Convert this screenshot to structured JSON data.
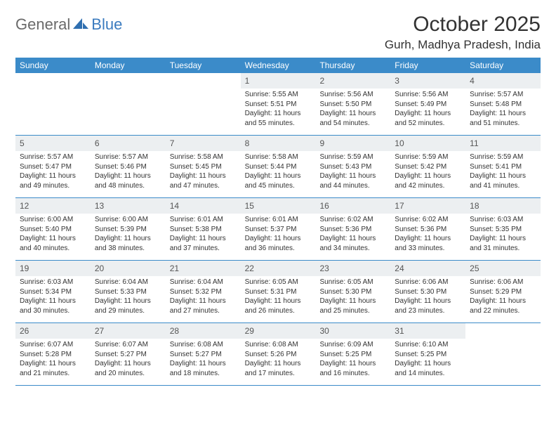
{
  "logo": {
    "part1": "General",
    "part2": "Blue"
  },
  "title": "October 2025",
  "location": "Gurh, Madhya Pradesh, India",
  "colors": {
    "header_bg": "#3b8bc9",
    "daynum_bg": "#eceff1",
    "rule": "#3b8bc9",
    "logo_gray": "#6a6a6a",
    "logo_blue": "#3b7bbf"
  },
  "weekdays": [
    "Sunday",
    "Monday",
    "Tuesday",
    "Wednesday",
    "Thursday",
    "Friday",
    "Saturday"
  ],
  "weeks": [
    [
      {
        "n": "",
        "sr": "",
        "ss": "",
        "dl1": "",
        "dl2": ""
      },
      {
        "n": "",
        "sr": "",
        "ss": "",
        "dl1": "",
        "dl2": ""
      },
      {
        "n": "",
        "sr": "",
        "ss": "",
        "dl1": "",
        "dl2": ""
      },
      {
        "n": "1",
        "sr": "Sunrise: 5:55 AM",
        "ss": "Sunset: 5:51 PM",
        "dl1": "Daylight: 11 hours",
        "dl2": "and 55 minutes."
      },
      {
        "n": "2",
        "sr": "Sunrise: 5:56 AM",
        "ss": "Sunset: 5:50 PM",
        "dl1": "Daylight: 11 hours",
        "dl2": "and 54 minutes."
      },
      {
        "n": "3",
        "sr": "Sunrise: 5:56 AM",
        "ss": "Sunset: 5:49 PM",
        "dl1": "Daylight: 11 hours",
        "dl2": "and 52 minutes."
      },
      {
        "n": "4",
        "sr": "Sunrise: 5:57 AM",
        "ss": "Sunset: 5:48 PM",
        "dl1": "Daylight: 11 hours",
        "dl2": "and 51 minutes."
      }
    ],
    [
      {
        "n": "5",
        "sr": "Sunrise: 5:57 AM",
        "ss": "Sunset: 5:47 PM",
        "dl1": "Daylight: 11 hours",
        "dl2": "and 49 minutes."
      },
      {
        "n": "6",
        "sr": "Sunrise: 5:57 AM",
        "ss": "Sunset: 5:46 PM",
        "dl1": "Daylight: 11 hours",
        "dl2": "and 48 minutes."
      },
      {
        "n": "7",
        "sr": "Sunrise: 5:58 AM",
        "ss": "Sunset: 5:45 PM",
        "dl1": "Daylight: 11 hours",
        "dl2": "and 47 minutes."
      },
      {
        "n": "8",
        "sr": "Sunrise: 5:58 AM",
        "ss": "Sunset: 5:44 PM",
        "dl1": "Daylight: 11 hours",
        "dl2": "and 45 minutes."
      },
      {
        "n": "9",
        "sr": "Sunrise: 5:59 AM",
        "ss": "Sunset: 5:43 PM",
        "dl1": "Daylight: 11 hours",
        "dl2": "and 44 minutes."
      },
      {
        "n": "10",
        "sr": "Sunrise: 5:59 AM",
        "ss": "Sunset: 5:42 PM",
        "dl1": "Daylight: 11 hours",
        "dl2": "and 42 minutes."
      },
      {
        "n": "11",
        "sr": "Sunrise: 5:59 AM",
        "ss": "Sunset: 5:41 PM",
        "dl1": "Daylight: 11 hours",
        "dl2": "and 41 minutes."
      }
    ],
    [
      {
        "n": "12",
        "sr": "Sunrise: 6:00 AM",
        "ss": "Sunset: 5:40 PM",
        "dl1": "Daylight: 11 hours",
        "dl2": "and 40 minutes."
      },
      {
        "n": "13",
        "sr": "Sunrise: 6:00 AM",
        "ss": "Sunset: 5:39 PM",
        "dl1": "Daylight: 11 hours",
        "dl2": "and 38 minutes."
      },
      {
        "n": "14",
        "sr": "Sunrise: 6:01 AM",
        "ss": "Sunset: 5:38 PM",
        "dl1": "Daylight: 11 hours",
        "dl2": "and 37 minutes."
      },
      {
        "n": "15",
        "sr": "Sunrise: 6:01 AM",
        "ss": "Sunset: 5:37 PM",
        "dl1": "Daylight: 11 hours",
        "dl2": "and 36 minutes."
      },
      {
        "n": "16",
        "sr": "Sunrise: 6:02 AM",
        "ss": "Sunset: 5:36 PM",
        "dl1": "Daylight: 11 hours",
        "dl2": "and 34 minutes."
      },
      {
        "n": "17",
        "sr": "Sunrise: 6:02 AM",
        "ss": "Sunset: 5:36 PM",
        "dl1": "Daylight: 11 hours",
        "dl2": "and 33 minutes."
      },
      {
        "n": "18",
        "sr": "Sunrise: 6:03 AM",
        "ss": "Sunset: 5:35 PM",
        "dl1": "Daylight: 11 hours",
        "dl2": "and 31 minutes."
      }
    ],
    [
      {
        "n": "19",
        "sr": "Sunrise: 6:03 AM",
        "ss": "Sunset: 5:34 PM",
        "dl1": "Daylight: 11 hours",
        "dl2": "and 30 minutes."
      },
      {
        "n": "20",
        "sr": "Sunrise: 6:04 AM",
        "ss": "Sunset: 5:33 PM",
        "dl1": "Daylight: 11 hours",
        "dl2": "and 29 minutes."
      },
      {
        "n": "21",
        "sr": "Sunrise: 6:04 AM",
        "ss": "Sunset: 5:32 PM",
        "dl1": "Daylight: 11 hours",
        "dl2": "and 27 minutes."
      },
      {
        "n": "22",
        "sr": "Sunrise: 6:05 AM",
        "ss": "Sunset: 5:31 PM",
        "dl1": "Daylight: 11 hours",
        "dl2": "and 26 minutes."
      },
      {
        "n": "23",
        "sr": "Sunrise: 6:05 AM",
        "ss": "Sunset: 5:30 PM",
        "dl1": "Daylight: 11 hours",
        "dl2": "and 25 minutes."
      },
      {
        "n": "24",
        "sr": "Sunrise: 6:06 AM",
        "ss": "Sunset: 5:30 PM",
        "dl1": "Daylight: 11 hours",
        "dl2": "and 23 minutes."
      },
      {
        "n": "25",
        "sr": "Sunrise: 6:06 AM",
        "ss": "Sunset: 5:29 PM",
        "dl1": "Daylight: 11 hours",
        "dl2": "and 22 minutes."
      }
    ],
    [
      {
        "n": "26",
        "sr": "Sunrise: 6:07 AM",
        "ss": "Sunset: 5:28 PM",
        "dl1": "Daylight: 11 hours",
        "dl2": "and 21 minutes."
      },
      {
        "n": "27",
        "sr": "Sunrise: 6:07 AM",
        "ss": "Sunset: 5:27 PM",
        "dl1": "Daylight: 11 hours",
        "dl2": "and 20 minutes."
      },
      {
        "n": "28",
        "sr": "Sunrise: 6:08 AM",
        "ss": "Sunset: 5:27 PM",
        "dl1": "Daylight: 11 hours",
        "dl2": "and 18 minutes."
      },
      {
        "n": "29",
        "sr": "Sunrise: 6:08 AM",
        "ss": "Sunset: 5:26 PM",
        "dl1": "Daylight: 11 hours",
        "dl2": "and 17 minutes."
      },
      {
        "n": "30",
        "sr": "Sunrise: 6:09 AM",
        "ss": "Sunset: 5:25 PM",
        "dl1": "Daylight: 11 hours",
        "dl2": "and 16 minutes."
      },
      {
        "n": "31",
        "sr": "Sunrise: 6:10 AM",
        "ss": "Sunset: 5:25 PM",
        "dl1": "Daylight: 11 hours",
        "dl2": "and 14 minutes."
      },
      {
        "n": "",
        "sr": "",
        "ss": "",
        "dl1": "",
        "dl2": ""
      }
    ]
  ]
}
